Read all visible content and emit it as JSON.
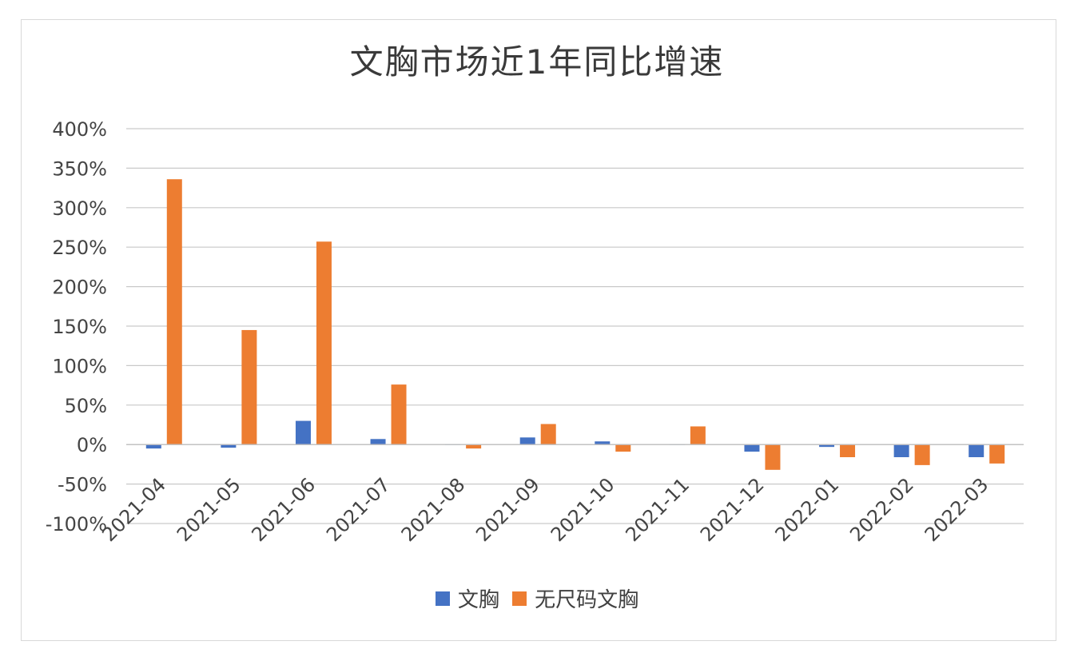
{
  "chart_data": {
    "type": "bar",
    "title": "文胸市场近1年同比增速",
    "categories": [
      "2021-04",
      "2021-05",
      "2021-06",
      "2021-07",
      "2021-08",
      "2021-09",
      "2021-10",
      "2021-11",
      "2021-12",
      "2022-01",
      "2022-02",
      "2022-03"
    ],
    "series": [
      {
        "name": "文胸",
        "color": "#4472c4",
        "values": [
          -5,
          -4,
          30,
          7,
          0,
          9,
          4,
          0,
          -9,
          -3,
          -16,
          -16
        ]
      },
      {
        "name": "无尺码文胸",
        "color": "#ed7d31",
        "values": [
          336,
          145,
          257,
          76,
          -5,
          26,
          -9,
          23,
          -32,
          -16,
          -26,
          -24
        ]
      }
    ],
    "y_ticks": [
      "400%",
      "350%",
      "300%",
      "250%",
      "200%",
      "150%",
      "100%",
      "50%",
      "0%",
      "-50%",
      "-100%"
    ],
    "ylim": [
      -100,
      400
    ],
    "grid": true,
    "legend_position": "bottom"
  }
}
